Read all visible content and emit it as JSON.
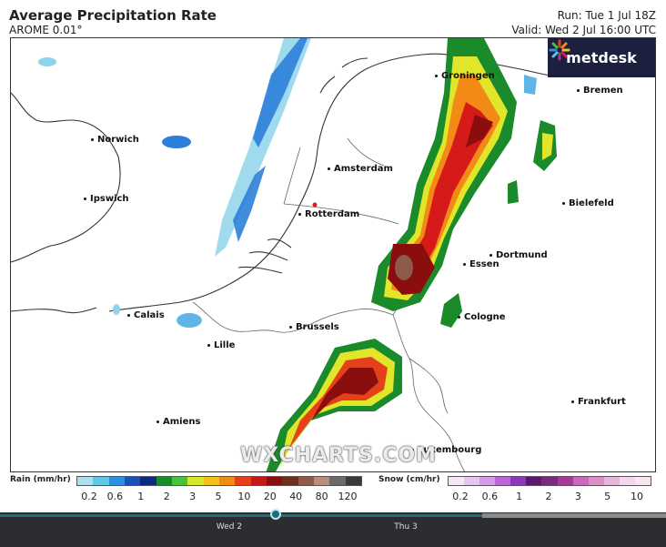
{
  "header": {
    "title": "Average Precipitation Rate",
    "model": "AROME 0.01°",
    "run": "Run: Tue 1 Jul 18Z",
    "valid": "Valid: Wed 2 Jul 16:00 UTC"
  },
  "logo": {
    "text": "metdesk",
    "icon": "metdesk-star-icon"
  },
  "watermark": "WXCHARTS.COM",
  "cities": [
    {
      "name": "Groningen"
    },
    {
      "name": "Bremen"
    },
    {
      "name": "Norwich"
    },
    {
      "name": "Amsterdam"
    },
    {
      "name": "Ipswich"
    },
    {
      "name": "Rotterdam"
    },
    {
      "name": "Bielefeld"
    },
    {
      "name": "Dortmund"
    },
    {
      "name": "Essen"
    },
    {
      "name": "Calais"
    },
    {
      "name": "Brussels"
    },
    {
      "name": "Cologne"
    },
    {
      "name": "Lille"
    },
    {
      "name": "Frankfurt"
    },
    {
      "name": "Amiens"
    },
    {
      "name": "Luxembourg"
    }
  ],
  "legend": {
    "rain": {
      "label": "Rain (mm/hr)",
      "ticks": [
        "0.2",
        "0.6",
        "1",
        "2",
        "3",
        "5",
        "10",
        "20",
        "40",
        "80",
        "120"
      ],
      "colors": [
        "#a9e0ea",
        "#5fc6e6",
        "#2c8fe0",
        "#1c4fb8",
        "#0e2a7a",
        "#1a8a2a",
        "#47c23a",
        "#d6e62a",
        "#f2c21a",
        "#f28a16",
        "#e6401a",
        "#c41a1a",
        "#8a0e0e",
        "#6e2e1e",
        "#8e5a4a",
        "#b88e7e",
        "#6a6a6a",
        "#3a3a3a"
      ]
    },
    "snow": {
      "label": "Snow (cm/hr)",
      "ticks": [
        "0.2",
        "0.6",
        "1",
        "2",
        "3",
        "5",
        "10"
      ],
      "colors": [
        "#f6e6f6",
        "#e6c6ee",
        "#d69ae6",
        "#b866d6",
        "#8a3ab8",
        "#5a1a6a",
        "#7a2a7a",
        "#a63a9a",
        "#c66ab8",
        "#d890c8",
        "#e6b6da",
        "#f2d6ea",
        "#fae6f2"
      ]
    }
  },
  "timeline": {
    "labels": [
      "Wed 2",
      "Thu 3"
    ]
  }
}
